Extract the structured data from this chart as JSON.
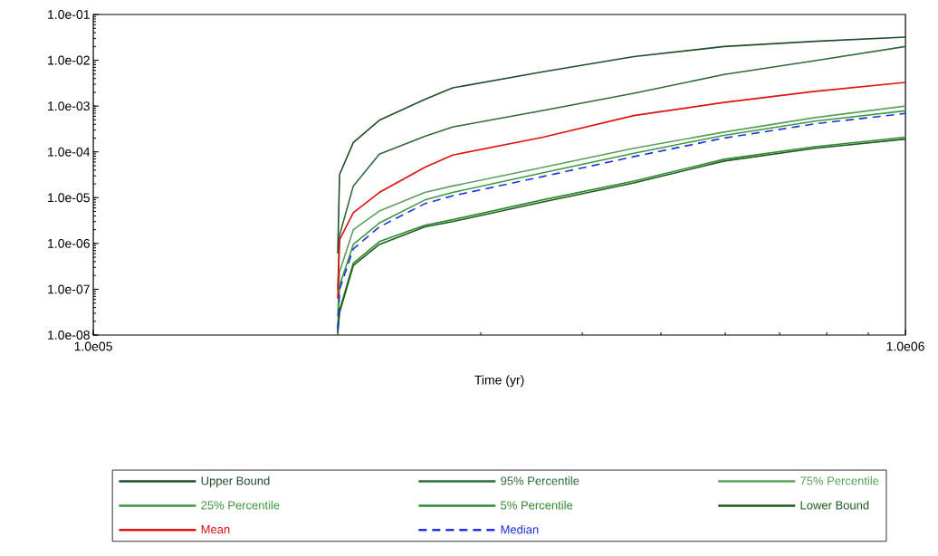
{
  "chart_data": {
    "type": "line",
    "xlabel": "Time (yr)",
    "log": "xy",
    "grid": false,
    "legend": "bottom",
    "marker": "none",
    "x": [
      200000,
      201000,
      209000,
      225000,
      256000,
      277000,
      358000,
      463000,
      598000,
      774000,
      1000000
    ],
    "xlim": [
      100000,
      1000000
    ],
    "ylim": [
      1e-08,
      0.1
    ],
    "xticks": [
      {
        "value": 100000,
        "label": "1.0e05"
      },
      {
        "value": 1000000,
        "label": "1.0e06"
      }
    ],
    "yticks": [
      {
        "value": 1e-08,
        "label": "1.0e-08"
      },
      {
        "value": 1e-07,
        "label": "1.0e-07"
      },
      {
        "value": 1e-06,
        "label": "1.0e-06"
      },
      {
        "value": 1e-05,
        "label": "1.0e-05"
      },
      {
        "value": 0.0001,
        "label": "1.0e-04"
      },
      {
        "value": 0.001,
        "label": "1.0e-03"
      },
      {
        "value": 0.01,
        "label": "1.0e-02"
      },
      {
        "value": 0.1,
        "label": "1.0e-01"
      }
    ],
    "series": [
      {
        "name": "Upper Bound",
        "color": "#1f4f2a",
        "line_style": "solid",
        "values": [
          6e-07,
          3.2e-05,
          0.00016,
          0.00049,
          0.0014,
          0.0025,
          0.0056,
          0.012,
          0.02,
          0.026,
          0.032
        ]
      },
      {
        "name": "95% Percentile",
        "color": "#2e6b3a",
        "line_style": "solid",
        "values": [
          9.8e-08,
          1.5e-06,
          1.8e-05,
          8.9e-05,
          0.00022,
          0.00035,
          0.0008,
          0.0019,
          0.0049,
          0.0098,
          0.02
        ]
      },
      {
        "name": "75% Percentile",
        "color": "#5aa05a",
        "line_style": "solid",
        "values": [
          2.5e-08,
          2.4e-07,
          2e-06,
          5.1e-06,
          1.3e-05,
          1.8e-05,
          4.6e-05,
          0.00012,
          0.00027,
          0.00056,
          0.001
        ]
      },
      {
        "name": "25% Percentile",
        "color": "#3c9a3c",
        "line_style": "solid",
        "values": [
          1.4e-08,
          1.2e-07,
          9.5e-07,
          2.8e-06,
          8.9e-06,
          1.3e-05,
          3.5e-05,
          9.3e-05,
          0.00023,
          0.00047,
          0.00079
        ]
      },
      {
        "name": "5% Percentile",
        "color": "#2e8b2e",
        "line_style": "solid",
        "values": [
          1.2e-08,
          3.5e-08,
          3.7e-07,
          1.1e-06,
          2.5e-06,
          3.3e-06,
          9e-06,
          2.3e-05,
          6.9e-05,
          0.00013,
          0.00021
        ]
      },
      {
        "name": "Lower Bound",
        "color": "#1e5a1e",
        "line_style": "solid",
        "values": [
          1.1e-08,
          3.1e-08,
          3.3e-07,
          9.5e-07,
          2.3e-06,
          3e-06,
          8.1e-06,
          2.1e-05,
          6.3e-05,
          0.00012,
          0.00019
        ]
      },
      {
        "name": "Mean",
        "color": "#e01010",
        "line_style": "solid",
        "values": [
          6.2e-08,
          1.2e-06,
          4.7e-06,
          1.3e-05,
          4.6e-05,
          8.5e-05,
          0.00021,
          0.00062,
          0.0012,
          0.0021,
          0.0033
        ]
      },
      {
        "name": "Median",
        "color": "#2030e0",
        "line_style": "dashed",
        "values": [
          1.3e-08,
          9.8e-08,
          7.6e-07,
          2.3e-06,
          7.4e-06,
          1.1e-05,
          2.9e-05,
          7.9e-05,
          0.0002,
          0.00041,
          0.00069
        ]
      }
    ]
  }
}
